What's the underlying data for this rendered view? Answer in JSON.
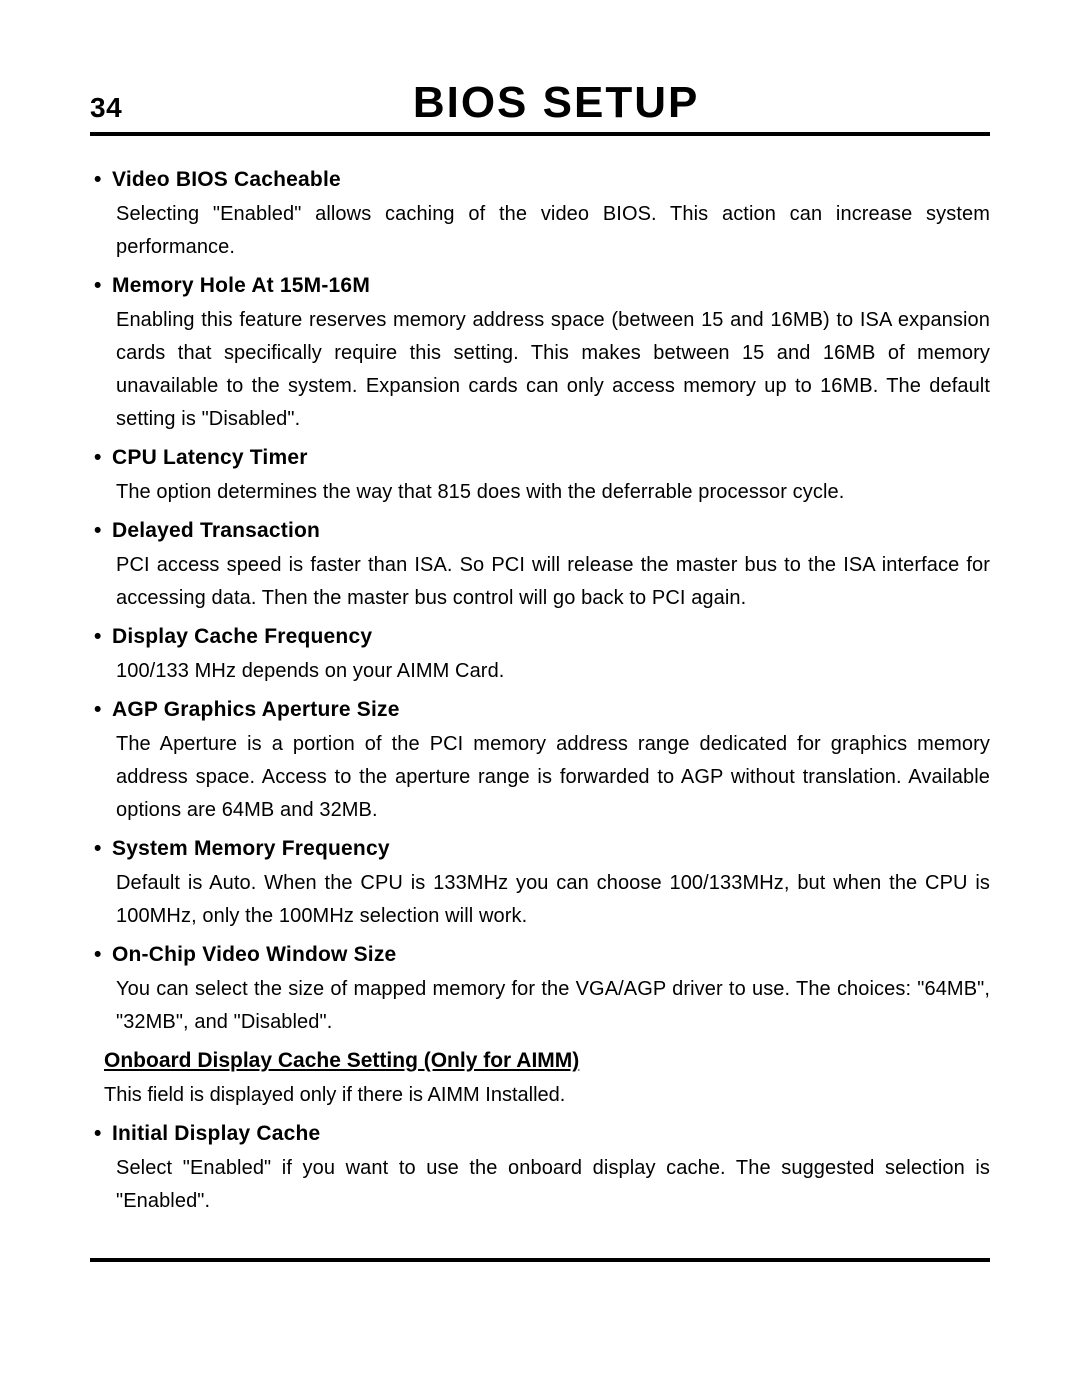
{
  "page": {
    "number": "34",
    "title": "BIOS SETUP"
  },
  "colors": {
    "text": "#000000",
    "background": "#ffffff",
    "rule": "#000000"
  },
  "typography": {
    "body_font": "Arial",
    "title_size_pt": 33,
    "heading_size_pt": 16,
    "body_size_pt": 15
  },
  "sections": [
    {
      "heading": "Video BIOS Cacheable",
      "body": "Selecting \"Enabled\" allows caching of the video BIOS.  This action can increase system performance."
    },
    {
      "heading": "Memory Hole At 15M-16M",
      "body": "Enabling this feature reserves memory address space (between 15 and 16MB) to ISA expansion cards that specifically require this setting.  This makes between 15 and 16MB of memory  unavailable to the system. Expansion cards can only access memory up to 16MB. The default setting is \"Disabled\"."
    },
    {
      "heading": "CPU Latency Timer",
      "body": "The option determines the way that 815 does with the deferrable processor cycle."
    },
    {
      "heading": "Delayed Transaction",
      "body": "PCI access speed is faster than ISA.  So PCI will release the master bus to the ISA interface for accessing data.  Then the master bus control will go back to PCI again."
    },
    {
      "heading": "Display Cache Frequency",
      "body": "100/133 MHz depends on your AIMM Card."
    },
    {
      "heading": "AGP Graphics Aperture Size",
      "body": "The Aperture is a portion of the PCI memory address range dedicated for graphics memory address space.  Access to the aperture range is forwarded to AGP without translation.  Available options are 64MB and 32MB."
    },
    {
      "heading": "System Memory Frequency",
      "body": "Default is Auto.  When the CPU is 133MHz  you can choose 100/133MHz, but when the CPU is 100MHz, only the 100MHz selection will work."
    },
    {
      "heading": "On-Chip Video Window Size",
      "body": "You can select the size of mapped memory for the VGA/AGP driver to use.  The choices: \"64MB\", \"32MB\", and \"Disabled\"."
    }
  ],
  "subsection": {
    "heading": "Onboard Display Cache Setting (Only for AIMM)",
    "body": "This field is displayed only if there is AIMM Installed."
  },
  "final_section": {
    "heading": "Initial Display Cache",
    "body": "Select \"Enabled\" if you want to use the onboard display cache.  The suggested selection is \"Enabled\"."
  }
}
